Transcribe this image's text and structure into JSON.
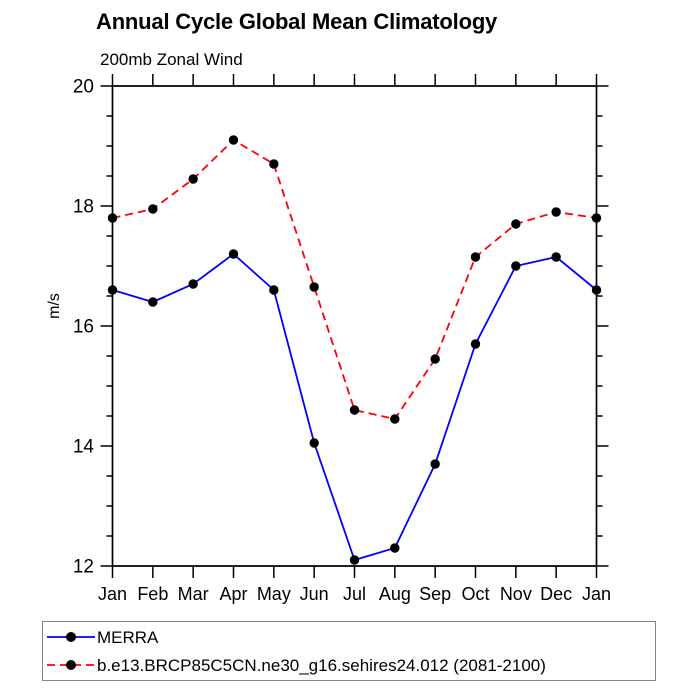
{
  "chart_data": {
    "type": "line",
    "title": "Annual Cycle Global Mean Climatology",
    "subtitle": "200mb Zonal Wind",
    "ylabel": "m/s",
    "xlabel": "",
    "categories": [
      "Jan",
      "Feb",
      "Mar",
      "Apr",
      "May",
      "Jun",
      "Jul",
      "Aug",
      "Sep",
      "Oct",
      "Nov",
      "Dec",
      "Jan"
    ],
    "ylim": [
      12,
      20
    ],
    "ytick_major": [
      12,
      14,
      16,
      18,
      20
    ],
    "ytick_minor_step": 0.5,
    "grid": false,
    "legend_position": "bottom-left",
    "frame_color": "#000000",
    "series": [
      {
        "name": "MERRA",
        "color": "#0000ff",
        "style": "solid",
        "marker": "filled-circle",
        "marker_color": "#000000",
        "values": [
          16.6,
          16.4,
          16.7,
          17.2,
          16.6,
          14.05,
          12.1,
          12.3,
          13.7,
          15.7,
          17.0,
          17.15,
          16.6
        ]
      },
      {
        "name": "b.e13.BRCP85C5CN.ne30_g16.sehires24.012 (2081-2100)",
        "color": "#ff0000",
        "style": "dashed",
        "marker": "filled-circle",
        "marker_color": "#000000",
        "values": [
          17.8,
          17.95,
          18.45,
          19.1,
          18.7,
          16.65,
          14.6,
          14.45,
          15.45,
          17.15,
          17.7,
          17.9,
          17.8
        ]
      }
    ]
  }
}
